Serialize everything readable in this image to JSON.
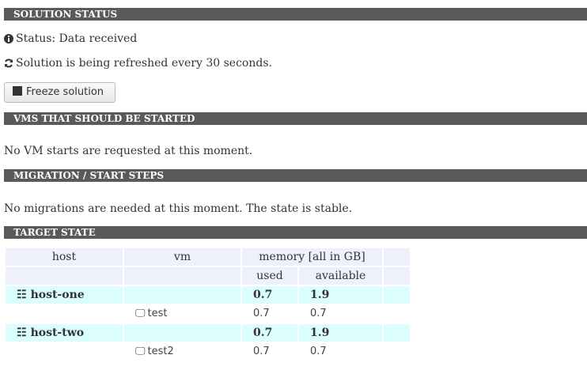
{
  "sections": {
    "status": "SOLUTION STATUS",
    "vms": "VMS THAT SHOULD BE STARTED",
    "migration": "MIGRATION / START STEPS",
    "target": "TARGET STATE"
  },
  "status": {
    "text": "Status: Data received",
    "refresh": "Solution is being refreshed every 30 seconds.",
    "freeze_button": "Freeze solution"
  },
  "vms": {
    "message": "No VM starts are requested at this moment."
  },
  "migration": {
    "message": "No migrations are needed at this moment. The state is stable."
  },
  "table": {
    "headers": {
      "host": "host",
      "vm": "vm",
      "memory": "memory [all in GB]",
      "used": "used",
      "available": "available"
    },
    "rows": [
      {
        "host": "host-one",
        "used": "0.7",
        "available": "1.9",
        "vms": [
          {
            "name": "test",
            "used": "0.7",
            "available": "0.7"
          }
        ]
      },
      {
        "host": "host-two",
        "used": "0.7",
        "available": "1.9",
        "vms": [
          {
            "name": "test2",
            "used": "0.7",
            "available": "0.7"
          }
        ]
      }
    ]
  },
  "colors": {
    "section_bar": "#5a5a5a",
    "header_cell": "#eef0fc",
    "host_row": "#dcfdfd"
  },
  "icons": {
    "status": "info-circle-icon",
    "refresh": "refresh-icon",
    "freeze": "stop-square-icon",
    "host": "cubes-icon",
    "vm": "desktop-icon"
  }
}
